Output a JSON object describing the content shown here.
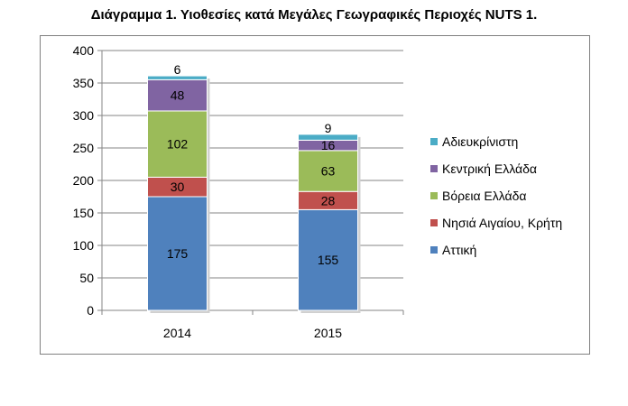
{
  "title": "Διάγραμμα 1. Υιοθεσίες κατά Μεγάλες Γεωγραφικές Περιοχές NUTS 1.",
  "chart_data": {
    "type": "bar",
    "stacked": true,
    "categories": [
      "2014",
      "2015"
    ],
    "series": [
      {
        "name": "Αττική",
        "values": [
          175,
          155
        ],
        "color": "#4F81BD"
      },
      {
        "name": "Νησιά Αιγαίου, Κρήτη",
        "values": [
          30,
          28
        ],
        "color": "#C0504D"
      },
      {
        "name": "Βόρεια Ελλάδα",
        "values": [
          102,
          63
        ],
        "color": "#9BBB59"
      },
      {
        "name": "Κεντρική Ελλάδα",
        "values": [
          48,
          16
        ],
        "color": "#8064A2"
      },
      {
        "name": "Αδιευκρίνιστη",
        "values": [
          6,
          9
        ],
        "color": "#4BACC6"
      }
    ],
    "ylim": [
      0,
      400
    ],
    "yticks": [
      "0",
      "50",
      "100",
      "150",
      "200",
      "250",
      "300",
      "350",
      "400"
    ],
    "grid": true,
    "legend": "right"
  }
}
